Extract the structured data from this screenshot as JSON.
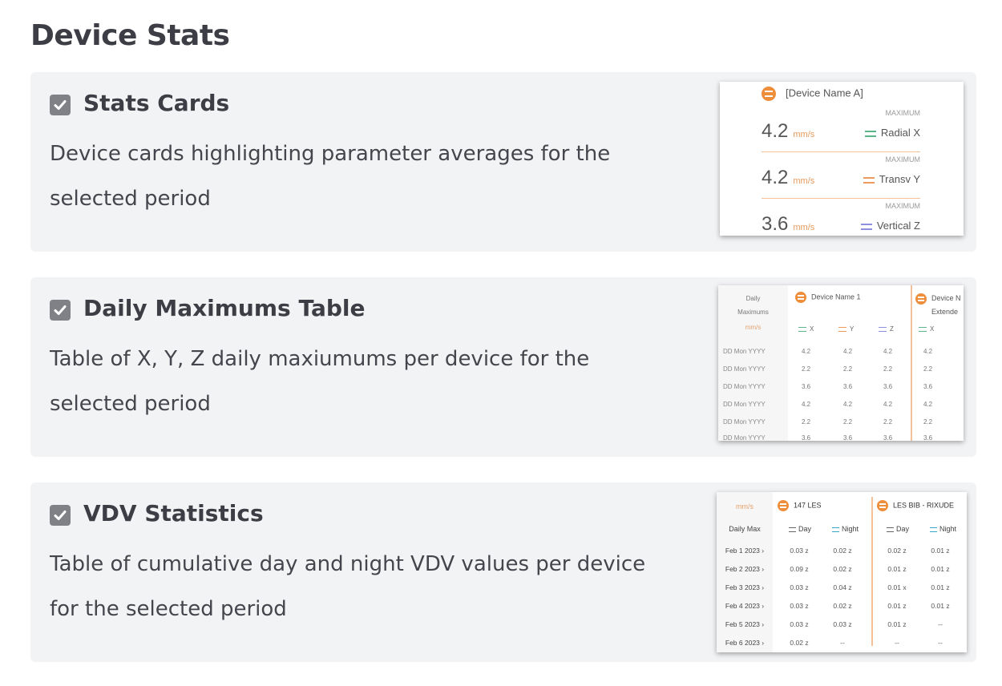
{
  "page_title": "Device Stats",
  "colors": {
    "card_bg": "#f2f3f5",
    "accent_orange": "#ee8e3b",
    "checkbox": "#808186",
    "axis_x": "#5bb58a",
    "axis_y": "#ee9a5c",
    "axis_z": "#8f8fe0",
    "day": "#666666",
    "night": "#3aa6c9"
  },
  "options": [
    {
      "title": "Stats Cards",
      "description": "Device cards highlighting parameter averages for the selected period",
      "checked": true,
      "preview": {
        "device_name": "[Device Name A]",
        "rows": [
          {
            "label": "MAXIMUM",
            "value": "4.2",
            "unit": "mm/s",
            "axis": "Radial X"
          },
          {
            "label": "MAXIMUM",
            "value": "4.2",
            "unit": "mm/s",
            "axis": "Transv Y"
          },
          {
            "label": "MAXIMUM",
            "value": "3.6",
            "unit": "mm/s",
            "axis": "Vertical Z"
          }
        ]
      }
    },
    {
      "title": "Daily Maximums Table",
      "description": "Table of X, Y, Z daily maxiumums per device for the selected period",
      "checked": true,
      "preview": {
        "header_line1": "Daily",
        "header_line2": "Maximums",
        "unit": "mm/s",
        "device1": "Device Name 1",
        "device2": "Device N",
        "device2_line2": "Extende",
        "axes": [
          "X",
          "Y",
          "Z",
          "X"
        ],
        "rows": [
          {
            "date": "DD Mon YYYY",
            "values": [
              "4.2",
              "4.2",
              "4.2",
              "4.2"
            ]
          },
          {
            "date": "DD Mon YYYY",
            "values": [
              "2.2",
              "2.2",
              "2.2",
              "2.2"
            ]
          },
          {
            "date": "DD Mon YYYY",
            "values": [
              "3.6",
              "3.6",
              "3.6",
              "3.6"
            ]
          },
          {
            "date": "DD Mon YYYY",
            "values": [
              "4.2",
              "4.2",
              "4.2",
              "4.2"
            ]
          },
          {
            "date": "DD Mon YYYY",
            "values": [
              "2.2",
              "2.2",
              "2.2",
              "2.2"
            ]
          },
          {
            "date": "DD Mon YYYY",
            "values": [
              "3.6",
              "3.6",
              "3.6",
              "3.6"
            ]
          }
        ]
      }
    },
    {
      "title": "VDV Statistics",
      "description": "Table of cumulative day and night VDV values per device for the selected period",
      "checked": true,
      "preview": {
        "unit": "mm/s",
        "daily_max": "Daily Max",
        "device1": "147 LES",
        "device2": "LES BIB - RIXUDE",
        "sub_headers": [
          "Day",
          "Night",
          "Day",
          "Night"
        ],
        "rows": [
          {
            "date": "Feb 1 2023 ›",
            "values": [
              "0.03 z",
              "0.02 z",
              "0.02 z",
              "0.01 z"
            ]
          },
          {
            "date": "Feb 2 2023 ›",
            "values": [
              "0.09 z",
              "0.02 z",
              "0.01 z",
              "0.01 z"
            ]
          },
          {
            "date": "Feb 3 2023 ›",
            "values": [
              "0.03 z",
              "0.04 z",
              "0.01 x",
              "0.01 z"
            ]
          },
          {
            "date": "Feb 4 2023 ›",
            "values": [
              "0.03 z",
              "0.02 z",
              "0.01 z",
              "0.01 z"
            ]
          },
          {
            "date": "Feb 5 2023 ›",
            "values": [
              "0.03 z",
              "0.03 z",
              "0.01 z",
              "--"
            ]
          },
          {
            "date": "Feb 6 2023 ›",
            "values": [
              "0.02 z",
              "--",
              "--",
              "--"
            ]
          }
        ]
      }
    }
  ]
}
